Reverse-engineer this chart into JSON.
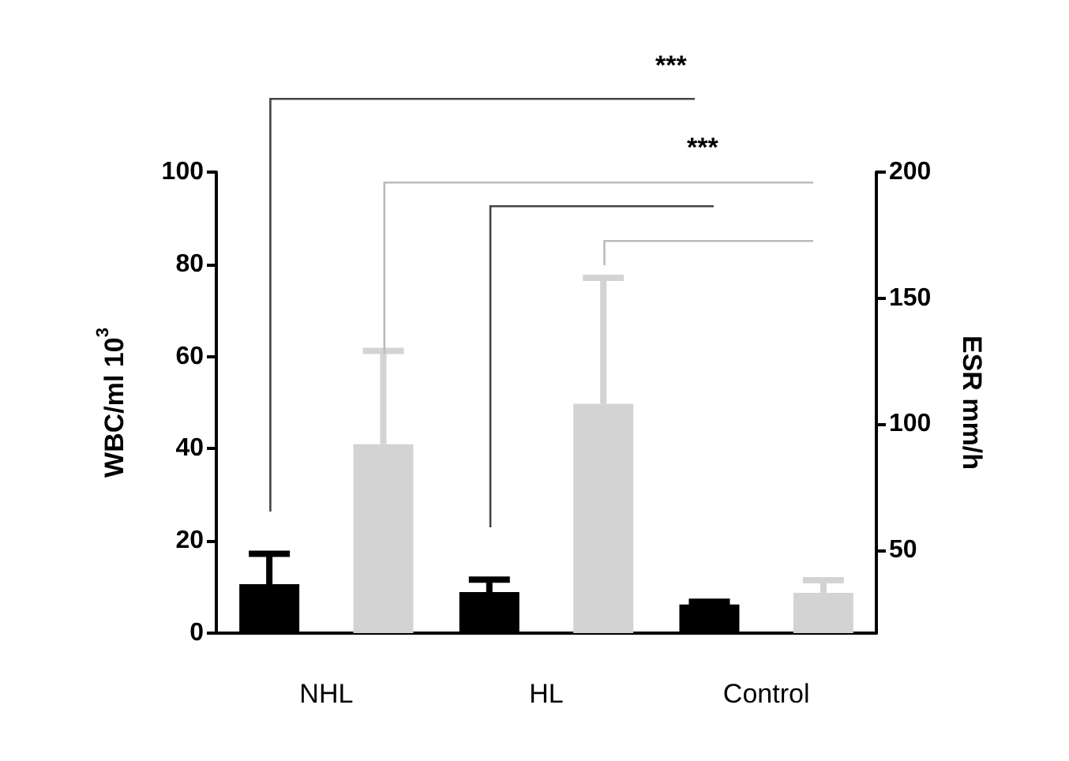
{
  "chart_data": {
    "type": "bar",
    "ylabel": "WBC/ml 10$^{3}$",
    "y2label": "ESR mm/h",
    "categories": [
      "NHL",
      "HL",
      "Control"
    ],
    "series": [
      {
        "color": "#000000",
        "values": [
          10.6,
          8.9,
          6.2
        ],
        "errors": [
          [
            10.6,
            17.2
          ],
          [
            8.9,
            11.6
          ],
          [
            6.2,
            6.8
          ]
        ]
      },
      {
        "color": "#d3d3d3",
        "axis": "y2",
        "values": [
          92,
          108,
          33
        ],
        "errors": [
          [
            92,
            129
          ],
          [
            108,
            158
          ],
          [
            33,
            38
          ]
        ]
      }
    ],
    "ylim": [
      0,
      100
    ],
    "yticks": [
      0,
      20,
      40,
      60,
      80,
      100
    ],
    "y2lim": [
      17,
      200
    ],
    "y2ticks": [
      50,
      100,
      150,
      200
    ],
    "annotations": [
      "***",
      "***"
    ],
    "grid": false
  }
}
